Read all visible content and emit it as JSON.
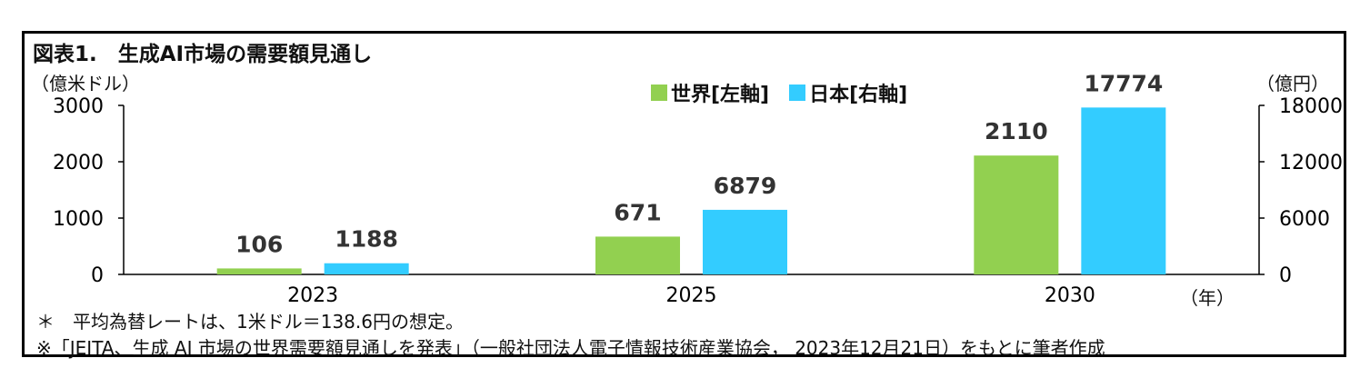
{
  "title": "図表1.　生成AI市場の需要額見通し",
  "y_unit_left": "（億米ドル）",
  "y_unit_right": "（億円）",
  "x_unit": "（年）",
  "notes": [
    "＊　平均為替レートは、1米ドル＝138.6円の想定。",
    "※「JEITA、生成 AI 市場の世界需要額見通しを発表」（一般社団法人電子情報技術産業協会， 2023年12月21日）をもとに筆者作成"
  ],
  "colors": {
    "world": "#92d050",
    "japan": "#33ccff"
  },
  "chart_data": {
    "type": "bar",
    "categories": [
      "2023",
      "2025",
      "2030"
    ],
    "series": [
      {
        "name": "世界[左軸]",
        "axis": "left",
        "values": [
          106,
          671,
          2110
        ],
        "labels": [
          "106",
          "671",
          "2110"
        ]
      },
      {
        "name": "日本[右軸]",
        "axis": "right",
        "values": [
          1188,
          6879,
          17774
        ],
        "labels": [
          "1188",
          "6879",
          "17774"
        ]
      }
    ],
    "y_left": {
      "lim": [
        0,
        3000
      ],
      "ticks": [
        "0",
        "1000",
        "2000",
        "3000"
      ]
    },
    "y_right": {
      "lim": [
        0,
        18000
      ],
      "ticks": [
        "0",
        "6000",
        "12000",
        "18000"
      ]
    },
    "grid": false,
    "legend": "top-center"
  }
}
